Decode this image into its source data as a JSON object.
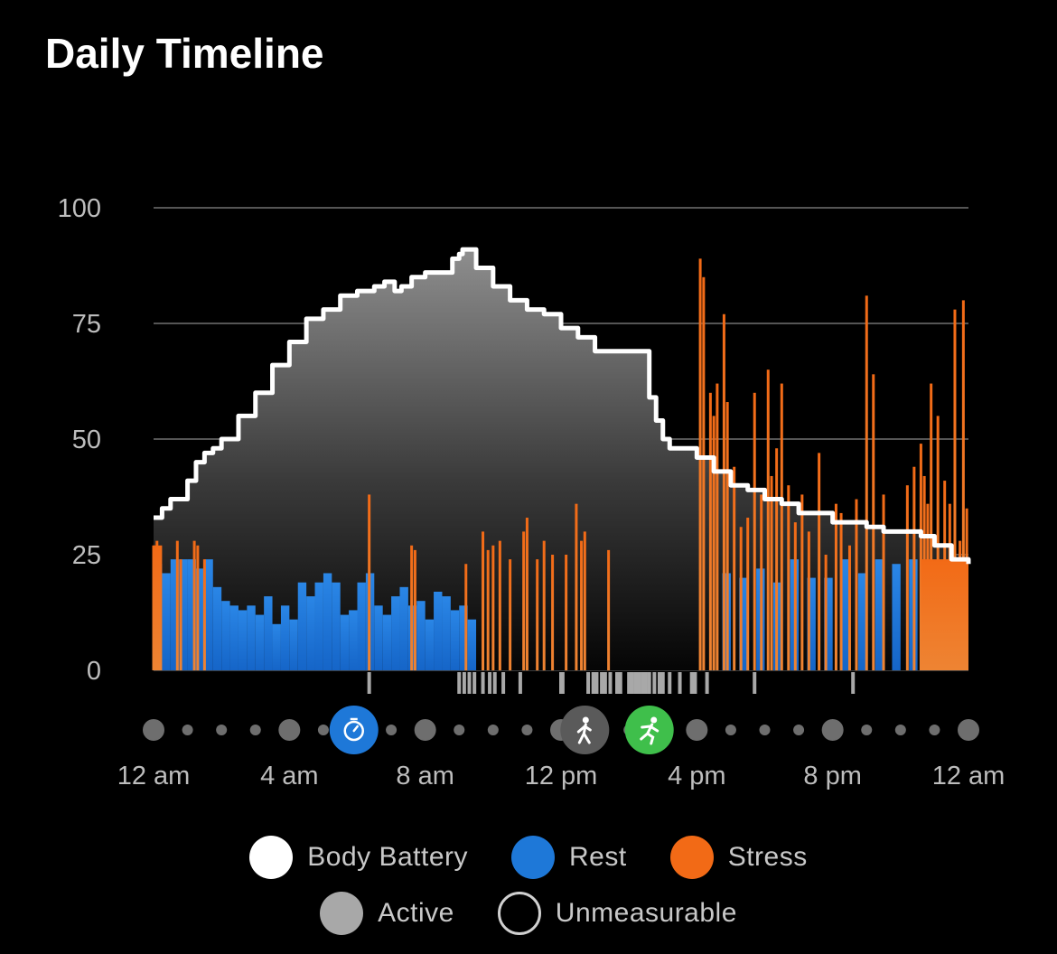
{
  "header": {
    "title": "Daily Timeline"
  },
  "colors": {
    "battery": "#ffffff",
    "rest": "#1e78d8",
    "stress": "#f26a16",
    "active": "#a8a8a8",
    "unmeasurable": "#000000",
    "grid": "#555555",
    "event_timer": "#1e78d8",
    "event_walk": "#5a5a5a",
    "event_run": "#3fbf4b"
  },
  "legend": {
    "battery": "Body Battery",
    "rest": "Rest",
    "stress": "Stress",
    "active": "Active",
    "unmeasurable": "Unmeasurable"
  },
  "events": [
    {
      "icon": "stopwatch-icon",
      "hour": 5.9,
      "color": "event_timer"
    },
    {
      "icon": "walk-icon",
      "hour": 12.7,
      "color": "event_walk"
    },
    {
      "icon": "run-icon",
      "hour": 14.6,
      "color": "event_run"
    }
  ],
  "chart_data": {
    "type": "area",
    "title": "Daily Timeline",
    "x_unit": "hour of day",
    "xlim": [
      0,
      24
    ],
    "ylim": [
      0,
      100
    ],
    "y_ticks": [
      0,
      25,
      50,
      75,
      100
    ],
    "x_ticks": [
      {
        "hour": 0,
        "label": "12 am"
      },
      {
        "hour": 4,
        "label": "4 am"
      },
      {
        "hour": 8,
        "label": "8 am"
      },
      {
        "hour": 12,
        "label": "12 pm"
      },
      {
        "hour": 16,
        "label": "4 pm"
      },
      {
        "hour": 20,
        "label": "8 pm"
      },
      {
        "hour": 24,
        "label": "12 am"
      }
    ],
    "grid": true,
    "legend_position": "bottom",
    "series": [
      {
        "name": "Body Battery",
        "type": "line",
        "x": [
          0,
          0.25,
          0.5,
          1.0,
          1.25,
          1.5,
          1.75,
          2.0,
          2.5,
          3.0,
          3.5,
          4.0,
          4.5,
          5.0,
          5.5,
          6.0,
          6.5,
          6.8,
          7.0,
          7.1,
          7.3,
          7.6,
          8.0,
          8.5,
          8.8,
          9.0,
          9.1,
          9.5,
          10.0,
          10.5,
          11.0,
          11.5,
          12.0,
          12.5,
          13.0,
          13.5,
          13.6,
          14.0,
          14.5,
          14.6,
          14.8,
          15.0,
          15.2,
          15.5,
          16.0,
          16.5,
          17.0,
          17.5,
          18.0,
          18.5,
          19.0,
          19.5,
          20.0,
          20.5,
          21.0,
          21.5,
          22.0,
          22.3,
          22.6,
          23.0,
          23.5,
          24.0
        ],
        "y": [
          33,
          35,
          37,
          41,
          45,
          47,
          48,
          50,
          55,
          60,
          66,
          71,
          76,
          78,
          81,
          82,
          83,
          84,
          84,
          82,
          83,
          85,
          86,
          86,
          89,
          90,
          91,
          87,
          83,
          80,
          78,
          77,
          74,
          72,
          69,
          69,
          69,
          69,
          69,
          59,
          54,
          50,
          48,
          48,
          46,
          43,
          40,
          39,
          37,
          36,
          34,
          34,
          32,
          32,
          31,
          30,
          30,
          30,
          29,
          27,
          24,
          23
        ]
      },
      {
        "name": "Rest",
        "type": "bars",
        "x": [
          0.25,
          0.5,
          0.75,
          1.0,
          1.25,
          1.5,
          1.75,
          2.0,
          2.25,
          2.5,
          2.75,
          3.0,
          3.25,
          3.5,
          3.75,
          4.0,
          4.25,
          4.5,
          4.75,
          5.0,
          5.25,
          5.5,
          5.75,
          6.0,
          6.25,
          6.5,
          6.75,
          7.0,
          7.25,
          7.5,
          7.75,
          8.0,
          8.25,
          8.5,
          8.75,
          9.0,
          9.25,
          9.5,
          10.0,
          10.5,
          11.0,
          11.5,
          12.0,
          12.5,
          13.0,
          13.5,
          14.0,
          14.5,
          17.0,
          17.5,
          18.0,
          18.5,
          19.0,
          19.5,
          20.0,
          20.5,
          21.0,
          21.5,
          22.0,
          22.5
        ],
        "y": [
          23,
          21,
          24,
          24,
          24,
          22,
          24,
          18,
          15,
          14,
          13,
          14,
          12,
          16,
          10,
          14,
          11,
          19,
          16,
          19,
          21,
          19,
          12,
          13,
          19,
          21,
          14,
          12,
          16,
          18,
          14,
          15,
          11,
          17,
          16,
          13,
          14,
          11,
          0,
          0,
          0,
          0,
          0,
          0,
          0,
          0,
          0,
          0,
          21,
          20,
          22,
          19,
          24,
          20,
          20,
          24,
          21,
          24,
          23,
          24
        ]
      },
      {
        "name": "Stress",
        "type": "bars",
        "x": [
          0.0,
          0.1,
          0.2,
          0.7,
          0.8,
          1.2,
          1.3,
          1.5,
          6.35,
          7.6,
          7.7,
          9.2,
          9.7,
          9.85,
          10.0,
          10.2,
          10.5,
          10.9,
          11.0,
          11.3,
          11.5,
          11.75,
          12.15,
          12.45,
          12.6,
          12.7,
          13.4,
          16.1,
          16.2,
          16.4,
          16.5,
          16.6,
          16.8,
          16.9,
          17.1,
          17.3,
          17.5,
          17.7,
          17.9,
          18.1,
          18.2,
          18.35,
          18.5,
          18.7,
          18.9,
          19.1,
          19.3,
          19.6,
          19.8,
          20.1,
          20.25,
          20.5,
          20.7,
          21.0,
          21.2,
          21.5,
          22.2,
          22.4,
          22.6,
          22.7,
          22.8,
          22.9,
          23.1,
          23.3,
          23.45,
          23.6,
          23.75,
          23.85,
          23.95
        ],
        "y": [
          27,
          28,
          26,
          28,
          24,
          28,
          27,
          24,
          38,
          27,
          26,
          23,
          30,
          26,
          27,
          28,
          24,
          30,
          33,
          24,
          28,
          25,
          25,
          36,
          28,
          30,
          26,
          89,
          85,
          60,
          55,
          62,
          77,
          58,
          44,
          31,
          33,
          60,
          38,
          65,
          42,
          48,
          62,
          40,
          32,
          38,
          30,
          47,
          25,
          36,
          34,
          27,
          37,
          81,
          64,
          38,
          40,
          44,
          49,
          42,
          36,
          62,
          55,
          41,
          36,
          78,
          28,
          80,
          35
        ]
      },
      {
        "name": "Active",
        "type": "ticks",
        "x": [
          6.35,
          9.0,
          9.15,
          9.3,
          9.45,
          9.7,
          9.9,
          10.05,
          10.3,
          10.8,
          12.0,
          12.05,
          12.8,
          12.95,
          13.05,
          13.2,
          13.3,
          13.45,
          13.65,
          13.75,
          14.0,
          14.1,
          14.2,
          14.3,
          14.4,
          14.5,
          14.6,
          14.75,
          14.9,
          15.0,
          15.2,
          15.5,
          15.85,
          15.95,
          16.3,
          17.7,
          20.6
        ]
      }
    ]
  }
}
